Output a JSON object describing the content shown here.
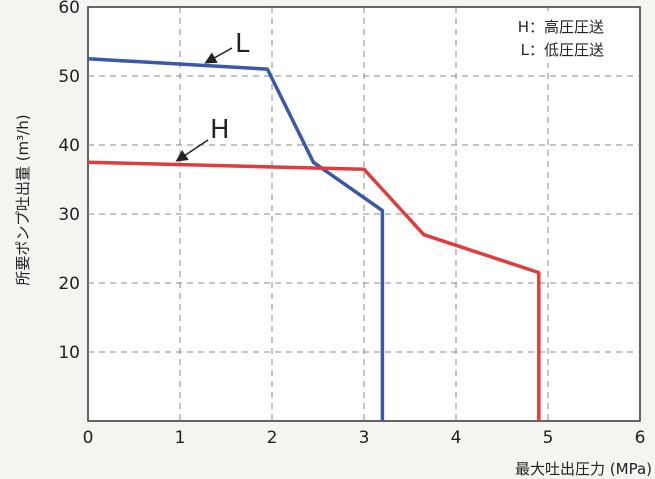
{
  "chart_data": {
    "type": "line",
    "xlabel": "最大吐出圧力 (MPa)",
    "ylabel": "所要ポンプ吐出量 (m³/h)",
    "xlim": [
      0,
      6
    ],
    "ylim": [
      0,
      60
    ],
    "xticks": [
      "0",
      "1",
      "2",
      "3",
      "4",
      "5",
      "6"
    ],
    "yticks": [
      "10",
      "20",
      "30",
      "40",
      "50",
      "60"
    ],
    "grid": true,
    "legend": {
      "placement": "top-right",
      "entries": [
        "H：高圧圧送",
        "L：低圧圧送"
      ]
    },
    "series": [
      {
        "name": "L",
        "color": "#3a57a8",
        "x": [
          0,
          1.95,
          2.45,
          3.2,
          3.2
        ],
        "y": [
          52.5,
          51,
          37.5,
          30.5,
          0
        ]
      },
      {
        "name": "H",
        "color": "#e03c3c",
        "x": [
          0,
          3.0,
          3.65,
          4.9,
          4.9
        ],
        "y": [
          37.5,
          36.5,
          27,
          21.5,
          0
        ]
      }
    ]
  }
}
